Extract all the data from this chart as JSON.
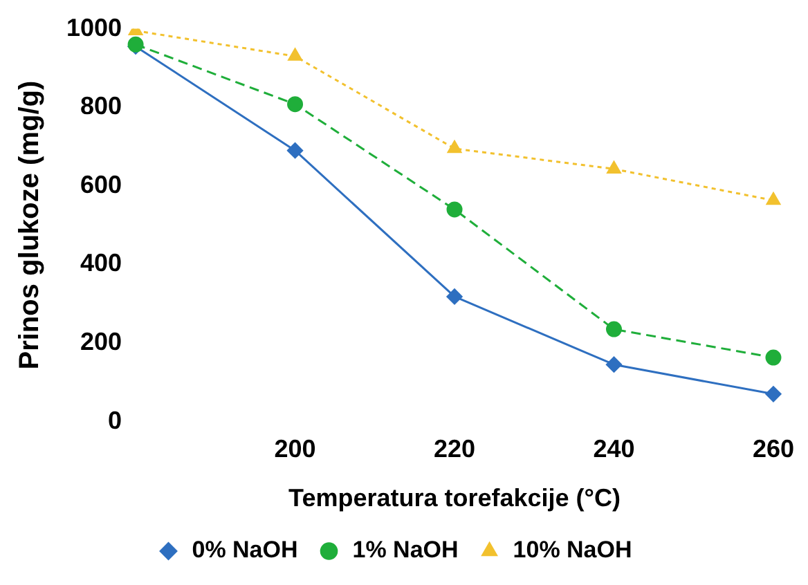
{
  "chart_data": {
    "type": "line",
    "xlabel": "Temperatura torefakcije (°C)",
    "ylabel": "Prinos glukoze (mg/g)",
    "categories": [
      null,
      "200",
      "220",
      "240",
      "260"
    ],
    "ylim": [
      0,
      1000
    ],
    "yticks": [
      0,
      200,
      400,
      600,
      800,
      1000
    ],
    "grid": false,
    "legend": "bottom",
    "series": [
      {
        "name": "0% NaOH",
        "color": "#2e6fc0",
        "values": [
          955,
          690,
          318,
          145,
          70
        ],
        "marker": "diamond",
        "line_style": "solid"
      },
      {
        "name": "1% NaOH",
        "color": "#1fae3a",
        "values": [
          960,
          808,
          540,
          235,
          163
        ],
        "marker": "circle",
        "line_style": "dashed"
      },
      {
        "name": "10% NaOH",
        "color": "#f2c12e",
        "values": [
          995,
          930,
          695,
          643,
          563
        ],
        "marker": "triangle",
        "line_style": "dotted"
      }
    ]
  }
}
